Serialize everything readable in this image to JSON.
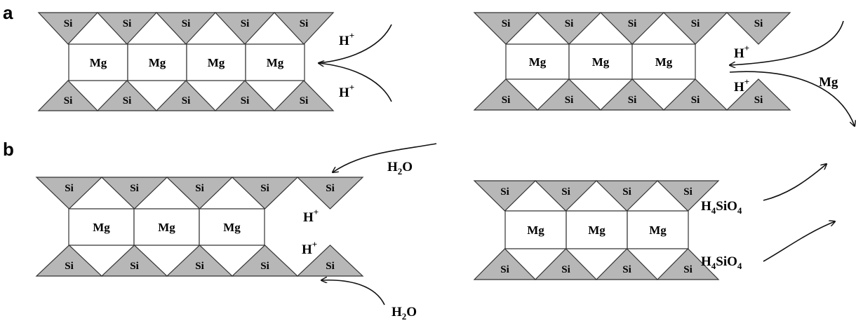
{
  "panels": {
    "a": {
      "label": "a"
    },
    "b": {
      "label": "b"
    }
  },
  "species": {
    "si": "Si",
    "mg": "Mg",
    "proton_base": "H",
    "proton_sup": "+",
    "mg_released": "Mg",
    "water_base": "H",
    "water_sub": "2",
    "water_tail": "O",
    "silicic_base": "H",
    "silicic_sub1": "4",
    "silicic_mid": "SiO",
    "silicic_sub2": "4"
  },
  "colors": {
    "tetrahedron_fill": "#b7b7b7",
    "stroke": "#333333"
  }
}
